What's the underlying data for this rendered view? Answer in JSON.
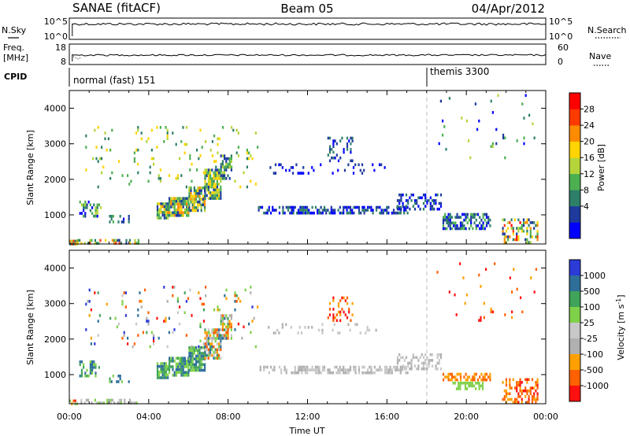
{
  "header": {
    "station": "SANAE (fitACF)",
    "beam": "Beam 05",
    "date": "04/Apr/2012"
  },
  "nsky_panel": {
    "left_label": "N.Sky",
    "right_label": "N.Search",
    "left_ticks": [
      "10^5",
      "10^0"
    ],
    "right_ticks": [
      "10^5",
      "10^0"
    ]
  },
  "freq_panel": {
    "left_label_line1": "Freq.",
    "left_label_line2": "[MHz]",
    "right_label": "Nave",
    "left_ticks": [
      "18",
      "8"
    ],
    "right_ticks": [
      "60",
      "0"
    ],
    "left_range": [
      8,
      18
    ],
    "right_range": [
      0,
      60
    ]
  },
  "cpid_panel": {
    "label": "CPID",
    "segments": [
      {
        "start_hour": 0,
        "text": "normal (fast) 151"
      },
      {
        "start_hour": 18.0,
        "text": "themis 3300"
      }
    ]
  },
  "x_axis": {
    "label": "Time UT",
    "ticks": [
      "00:00",
      "04:00",
      "08:00",
      "12:00",
      "16:00",
      "20:00",
      "00:00"
    ],
    "range_hours": [
      0,
      24
    ]
  },
  "colors": {
    "power_scale": [
      "#0000ff",
      "#1e3a9c",
      "#2e7f6a",
      "#4caf50",
      "#b5d43a",
      "#ffd400",
      "#ff8c00",
      "#ff3a00",
      "#ff0000"
    ],
    "velocity_scale": [
      "#2b3bd8",
      "#2e6f9a",
      "#3fa35a",
      "#7fd14a",
      "#c8c8c8",
      "#b0b0b0",
      "#ffa000",
      "#ff6000",
      "#ff1010"
    ]
  },
  "chart_data": [
    {
      "type": "heatmap",
      "name": "power",
      "ylabel": "Slant Range [km]",
      "ylim": [
        180,
        4500
      ],
      "yticks": [
        1000,
        2000,
        3000,
        4000
      ],
      "colorbar_label": "Power [dB]",
      "colorbar_ticks": [
        "28",
        "24",
        "20",
        "16",
        "12",
        "8",
        "4"
      ],
      "colorbar_range": [
        0,
        32
      ],
      "regions": [
        {
          "t0": 0.0,
          "t1": 0.4,
          "r0": 180,
          "r1": 300,
          "density": 0.7,
          "c_low": 2,
          "c_high": 8
        },
        {
          "t0": 0.3,
          "t1": 3.5,
          "r0": 180,
          "r1": 320,
          "density": 0.5,
          "c_low": 1,
          "c_high": 7
        },
        {
          "t0": 0.5,
          "t1": 1.6,
          "r0": 950,
          "r1": 1400,
          "density": 0.4,
          "c_low": 0,
          "c_high": 4
        },
        {
          "t0": 2.0,
          "t1": 3.0,
          "r0": 800,
          "r1": 1000,
          "density": 0.3,
          "c_low": 0,
          "c_high": 3
        },
        {
          "t0": 4.4,
          "t1": 5.0,
          "r0": 900,
          "r1": 1350,
          "density": 0.85,
          "c_low": 1,
          "c_high": 6
        },
        {
          "t0": 5.0,
          "t1": 6.0,
          "r0": 950,
          "r1": 1500,
          "density": 0.9,
          "c_low": 1,
          "c_high": 6
        },
        {
          "t0": 6.0,
          "t1": 6.8,
          "r0": 1150,
          "r1": 1800,
          "density": 0.85,
          "c_low": 1,
          "c_high": 6
        },
        {
          "t0": 6.8,
          "t1": 7.6,
          "r0": 1500,
          "r1": 2300,
          "density": 0.8,
          "c_low": 1,
          "c_high": 5
        },
        {
          "t0": 7.6,
          "t1": 8.2,
          "r0": 2000,
          "r1": 2700,
          "density": 0.7,
          "c_low": 1,
          "c_high": 4
        },
        {
          "t0": 9.5,
          "t1": 12.0,
          "r0": 1050,
          "r1": 1250,
          "density": 0.4,
          "c_low": 0,
          "c_high": 2
        },
        {
          "t0": 11.5,
          "t1": 17.0,
          "r0": 1080,
          "r1": 1250,
          "density": 0.55,
          "c_low": 0,
          "c_high": 2
        },
        {
          "t0": 16.5,
          "t1": 18.7,
          "r0": 1200,
          "r1": 1600,
          "density": 0.4,
          "c_low": 0,
          "c_high": 2
        },
        {
          "t0": 10.0,
          "t1": 16.0,
          "r0": 2200,
          "r1": 2450,
          "density": 0.12,
          "c_low": 0,
          "c_high": 1
        },
        {
          "t0": 13.0,
          "t1": 14.3,
          "r0": 2500,
          "r1": 3200,
          "density": 0.25,
          "c_low": 0,
          "c_high": 2
        },
        {
          "t0": 18.8,
          "t1": 21.2,
          "r0": 600,
          "r1": 1050,
          "density": 0.6,
          "c_low": 0,
          "c_high": 3
        },
        {
          "t0": 21.8,
          "t1": 23.6,
          "r0": 200,
          "r1": 900,
          "density": 0.45,
          "c_low": 1,
          "c_high": 8
        },
        {
          "t0": 0.8,
          "t1": 9.5,
          "r0": 1800,
          "r1": 3500,
          "density": 0.05,
          "c_low": 2,
          "c_high": 5
        },
        {
          "t0": 18.5,
          "t1": 23.5,
          "r0": 2500,
          "r1": 4400,
          "density": 0.03,
          "c_low": 0,
          "c_high": 4
        }
      ]
    },
    {
      "type": "heatmap",
      "name": "velocity",
      "ylabel": "Slant Range [km]",
      "ylim": [
        180,
        4500
      ],
      "yticks": [
        1000,
        2000,
        3000,
        4000
      ],
      "colorbar_label": "Velocity [m s^-1]",
      "colorbar_ticks": [
        "1000",
        "500",
        "100",
        "25",
        "-25",
        "-100",
        "-500",
        "-1000"
      ],
      "colorbar_range": [
        -1200,
        1200
      ],
      "regions": [
        {
          "t0": 0.0,
          "t1": 0.4,
          "r0": 180,
          "r1": 300,
          "density": 0.7,
          "c_low": 3,
          "c_high": 8
        },
        {
          "t0": 0.3,
          "t1": 3.5,
          "r0": 180,
          "r1": 320,
          "density": 0.5,
          "c_low": 3,
          "c_high": 5
        },
        {
          "t0": 0.5,
          "t1": 1.6,
          "r0": 950,
          "r1": 1400,
          "density": 0.4,
          "c_low": 1,
          "c_high": 3
        },
        {
          "t0": 2.0,
          "t1": 3.0,
          "r0": 800,
          "r1": 1000,
          "density": 0.3,
          "c_low": 1,
          "c_high": 3
        },
        {
          "t0": 4.4,
          "t1": 5.0,
          "r0": 900,
          "r1": 1350,
          "density": 0.85,
          "c_low": 1,
          "c_high": 3
        },
        {
          "t0": 5.0,
          "t1": 6.0,
          "r0": 950,
          "r1": 1500,
          "density": 0.9,
          "c_low": 1,
          "c_high": 3
        },
        {
          "t0": 6.0,
          "t1": 6.8,
          "r0": 1150,
          "r1": 1800,
          "density": 0.85,
          "c_low": 1,
          "c_high": 3
        },
        {
          "t0": 6.8,
          "t1": 7.6,
          "r0": 1500,
          "r1": 2300,
          "density": 0.8,
          "c_low": 1,
          "c_high": 7
        },
        {
          "t0": 7.6,
          "t1": 8.2,
          "r0": 2000,
          "r1": 2700,
          "density": 0.7,
          "c_low": 1,
          "c_high": 7
        },
        {
          "t0": 9.5,
          "t1": 12.0,
          "r0": 1050,
          "r1": 1250,
          "density": 0.4,
          "c_low": 4,
          "c_high": 5
        },
        {
          "t0": 11.5,
          "t1": 17.0,
          "r0": 1080,
          "r1": 1250,
          "density": 0.55,
          "c_low": 4,
          "c_high": 5
        },
        {
          "t0": 16.5,
          "t1": 18.7,
          "r0": 1200,
          "r1": 1600,
          "density": 0.4,
          "c_low": 4,
          "c_high": 5
        },
        {
          "t0": 10.0,
          "t1": 16.0,
          "r0": 2200,
          "r1": 2450,
          "density": 0.12,
          "c_low": 4,
          "c_high": 5
        },
        {
          "t0": 13.0,
          "t1": 14.3,
          "r0": 2500,
          "r1": 3200,
          "density": 0.25,
          "c_low": 6,
          "c_high": 8
        },
        {
          "t0": 18.8,
          "t1": 21.2,
          "r0": 850,
          "r1": 1050,
          "density": 0.6,
          "c_low": 6,
          "c_high": 7
        },
        {
          "t0": 19.3,
          "t1": 20.8,
          "r0": 600,
          "r1": 800,
          "density": 0.6,
          "c_low": 3,
          "c_high": 3
        },
        {
          "t0": 21.8,
          "t1": 23.6,
          "r0": 200,
          "r1": 900,
          "density": 0.45,
          "c_low": 6,
          "c_high": 8
        },
        {
          "t0": 0.8,
          "t1": 9.5,
          "r0": 1800,
          "r1": 3500,
          "density": 0.05,
          "c_low": 0,
          "c_high": 8
        },
        {
          "t0": 18.5,
          "t1": 23.5,
          "r0": 2500,
          "r1": 4400,
          "density": 0.03,
          "c_low": 6,
          "c_high": 8
        }
      ]
    }
  ]
}
